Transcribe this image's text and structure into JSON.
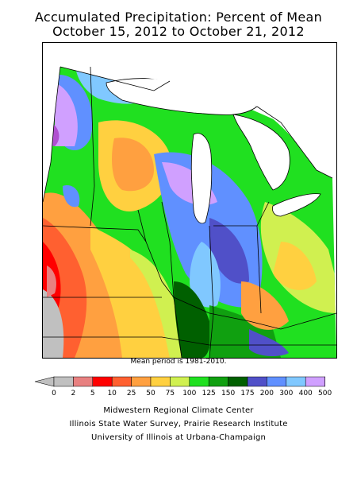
{
  "title_line1": "Accumulated Precipitation: Percent of Mean",
  "title_line2": "October 15, 2012 to October 21, 2012",
  "mean_period": "Mean period is 1981-2010.",
  "legend": {
    "labels": [
      "0",
      "2",
      "5",
      "10",
      "25",
      "50",
      "75",
      "100",
      "125",
      "150",
      "175",
      "200",
      "300",
      "400",
      "500"
    ],
    "colors": [
      "#c0c0c0",
      "#e88080",
      "#ff0000",
      "#ff6030",
      "#ffa040",
      "#ffd040",
      "#d0f050",
      "#20e020",
      "#10a010",
      "#006000",
      "#5050c8",
      "#6090ff",
      "#80c8ff",
      "#d0a0ff",
      "#b050d0"
    ]
  },
  "credits": {
    "line1": "Midwestern Regional Climate Center",
    "line2": "Illinois State Water Survey, Prairie Research Institute",
    "line3": "University of Illinois at Urbana-Champaign"
  }
}
